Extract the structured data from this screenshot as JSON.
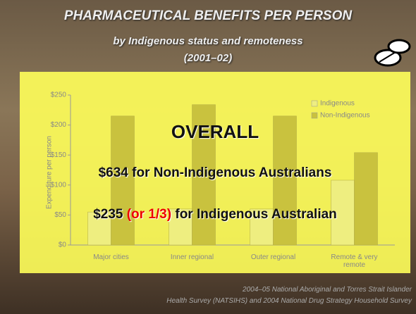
{
  "chart_data": {
    "type": "bar",
    "title": "PHARMACEUTICAL BENEFITS PER PERSON",
    "subtitle": [
      "by Indigenous status and remoteness",
      "(2001–02)"
    ],
    "y_label": "Expenditure per person",
    "categories": [
      "Major cities",
      "Inner regional",
      "Outer regional",
      "Remote & very remote"
    ],
    "series": [
      {
        "name": "Indigenous",
        "color": "#eeee80",
        "values": [
          55,
          60,
          60,
          108
        ]
      },
      {
        "name": "Non-Indigenous",
        "color": "#c9c23e",
        "values": [
          215,
          234,
          215,
          154
        ]
      }
    ],
    "ylim": [
      0,
      250
    ],
    "yticks": [
      {
        "value": 0,
        "label": "$0"
      },
      {
        "value": 50,
        "label": "$50"
      },
      {
        "value": 100,
        "label": "$100"
      },
      {
        "value": 150,
        "label": "$150"
      },
      {
        "value": 200,
        "label": "$200"
      },
      {
        "value": 250,
        "label": "$250"
      }
    ],
    "grid": false,
    "legend": "top-right",
    "annotations": [
      "OVERALL",
      "$634 for Non-Indigenous Australians",
      [
        "$235 ",
        "(or 1/3)",
        " for Indigenous Australian"
      ]
    ],
    "source": [
      "2004–05 National Aboriginal and Torres Strait Islander",
      "Health Survey (NATSIHS) and 2004 National Drug Strategy Household Survey"
    ]
  }
}
